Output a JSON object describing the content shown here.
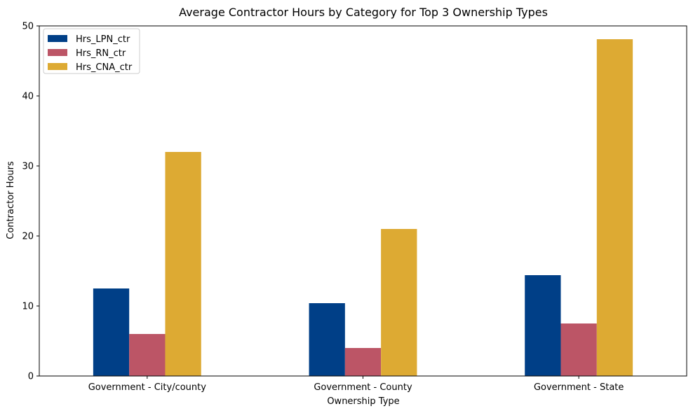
{
  "chart_data": {
    "type": "bar",
    "title": "Average Contractor Hours by Category for Top 3 Ownership Types",
    "xlabel": "Ownership Type",
    "ylabel": "Contractor Hours",
    "categories": [
      "Government - City/county",
      "Government - County",
      "Government - State"
    ],
    "series": [
      {
        "name": "Hrs_LPN_ctr",
        "color": "#003f87",
        "values": [
          12.5,
          10.4,
          14.4
        ]
      },
      {
        "name": "Hrs_RN_ctr",
        "color": "#bc5566",
        "values": [
          6.0,
          4.0,
          7.5
        ]
      },
      {
        "name": "Hrs_CNA_ctr",
        "color": "#ddaa33",
        "values": [
          32.0,
          21.0,
          48.1
        ]
      }
    ],
    "ylim": [
      0,
      50
    ],
    "yticks": [
      "0",
      "10",
      "20",
      "30",
      "40",
      "50"
    ],
    "legend": "top-left",
    "grid": false
  }
}
